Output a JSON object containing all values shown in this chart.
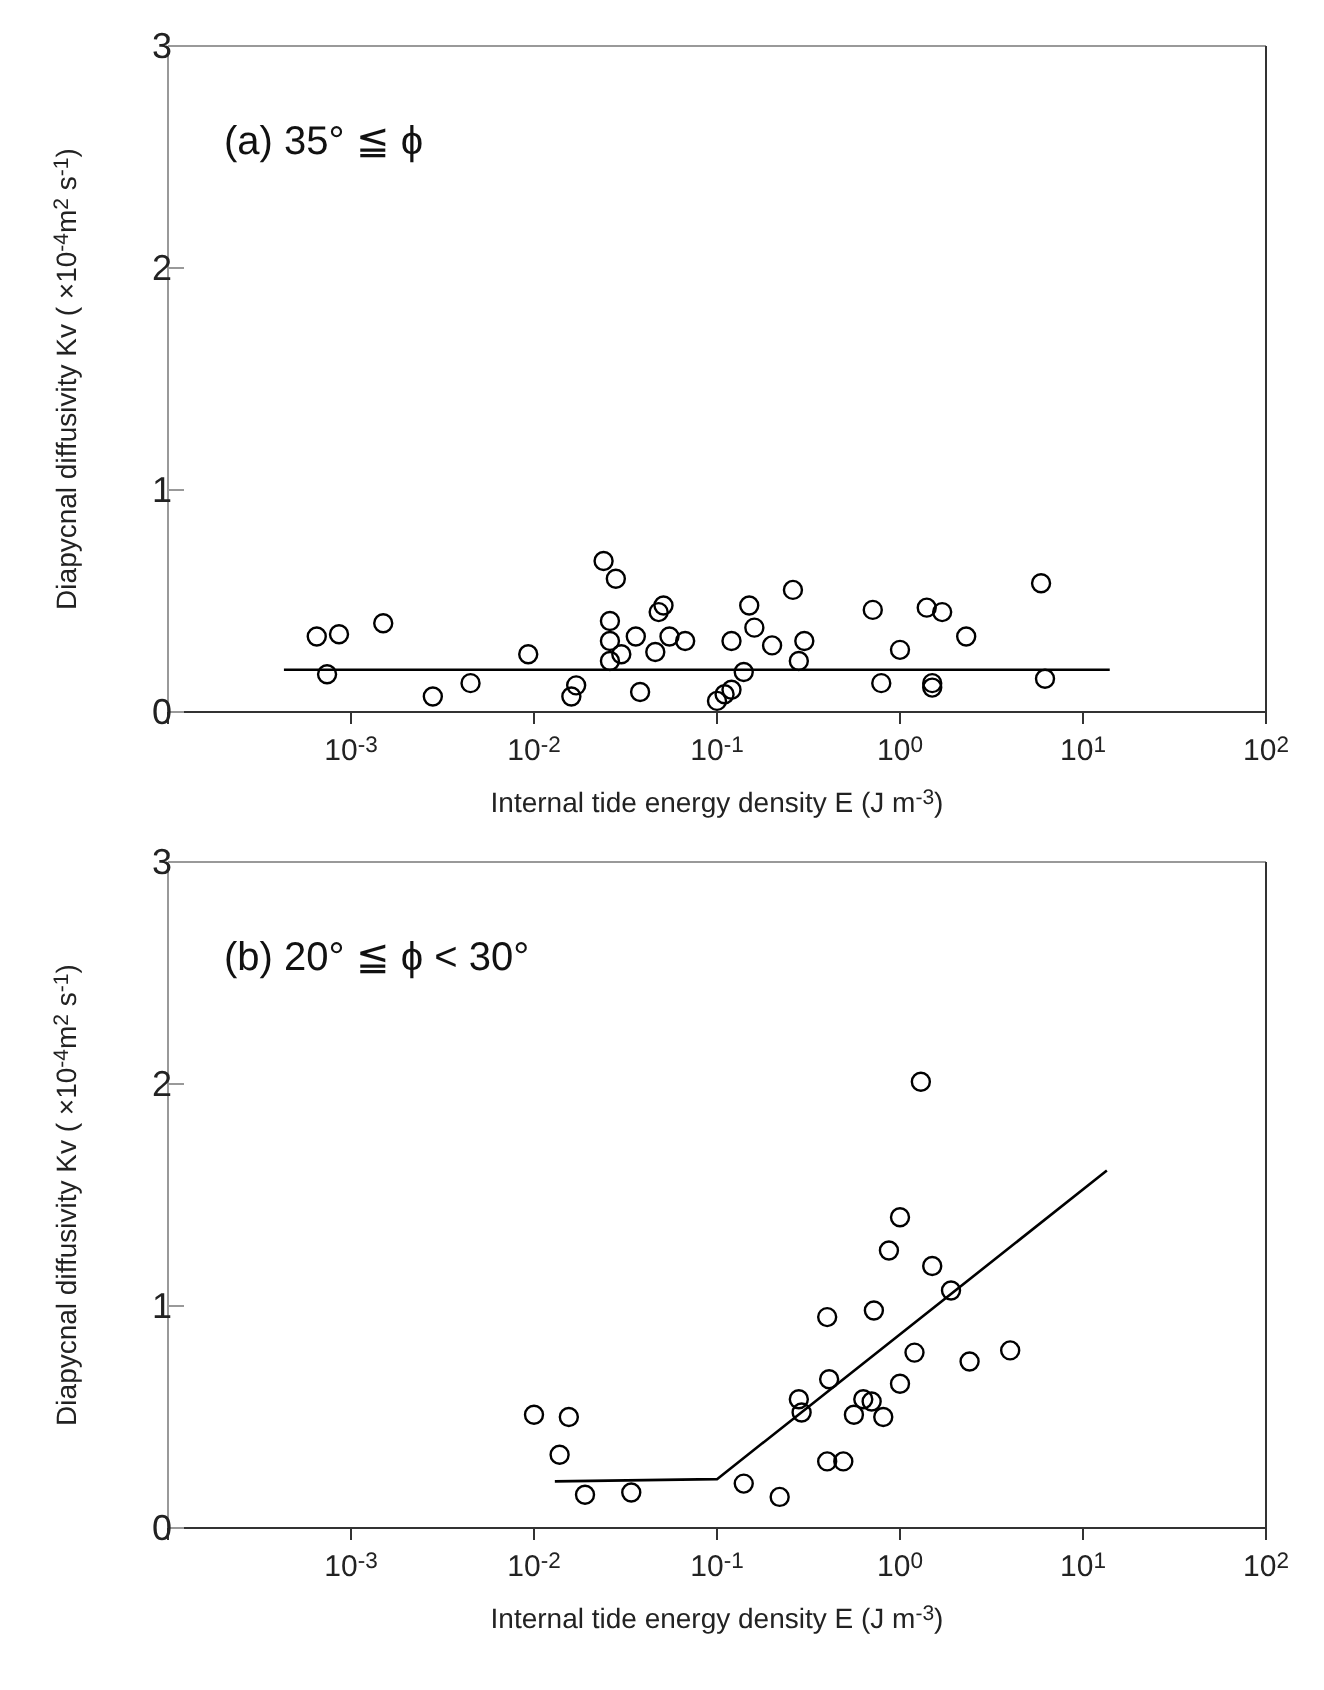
{
  "chart_data": [
    {
      "type": "scatter",
      "title": "(a) 35° ≦ ϕ",
      "xlabel": "Internal tide energy density E (J m$^{-3}$)",
      "ylabel": "Diapycnal diffusivity Kv ( ×10$^{-4}$m$^{2}$ s$^{-1}$)",
      "log": "x",
      "grid": false,
      "xlim": [
        0.0001,
        100
      ],
      "xticks": [
        {
          "value": 0.0001,
          "label": null
        },
        {
          "value": 0.001,
          "label": "10$^{-3}$"
        },
        {
          "value": 0.01,
          "label": "10$^{-2}$"
        },
        {
          "value": 0.1,
          "label": "10$^{-1}$"
        },
        {
          "value": 1,
          "label": "10$^{0}$"
        },
        {
          "value": 10,
          "label": "10$^{1}$"
        },
        {
          "value": 100,
          "label": "10$^{2}$"
        }
      ],
      "ylim": [
        0,
        3
      ],
      "yticks": [
        0,
        1,
        2,
        3
      ],
      "series": [
        {
          "marker": "circle",
          "color": "#000000",
          "x": [
            0.00065,
            0.00086,
            0.00074,
            0.0015,
            0.0028,
            0.0045,
            0.0093,
            0.016,
            0.017,
            0.024,
            0.028,
            0.026,
            0.026,
            0.026,
            0.03,
            0.036,
            0.038,
            0.046,
            0.048,
            0.051,
            0.055,
            0.067,
            0.12,
            0.15,
            0.16,
            0.2,
            0.14,
            0.11,
            0.12,
            0.1,
            0.26,
            0.3,
            0.28,
            0.71,
            1.0,
            0.79,
            1.4,
            1.7,
            1.5,
            1.5,
            2.3,
            5.9,
            6.2
          ],
          "values": [
            0.34,
            0.35,
            0.17,
            0.4,
            0.07,
            0.13,
            0.26,
            0.07,
            0.12,
            0.68,
            0.6,
            0.41,
            0.32,
            0.23,
            0.26,
            0.34,
            0.09,
            0.27,
            0.45,
            0.48,
            0.34,
            0.32,
            0.32,
            0.48,
            0.38,
            0.3,
            0.18,
            0.08,
            0.1,
            0.05,
            0.55,
            0.32,
            0.23,
            0.46,
            0.28,
            0.13,
            0.47,
            0.45,
            0.13,
            0.11,
            0.34,
            0.58,
            0.15
          ]
        },
        {
          "type": "line",
          "marker": "none",
          "color": "#000000",
          "x": [
            0.00043,
            14
          ],
          "values": [
            0.19,
            0.19
          ]
        }
      ]
    },
    {
      "type": "scatter",
      "title": "(b) 20° ≦ ϕ < 30°",
      "xlabel": "Internal tide energy density E (J m$^{-3}$)",
      "ylabel": "Diapycnal diffusivity Kv ( ×10$^{-4}$m$^{2}$ s$^{-1}$)",
      "log": "x",
      "grid": false,
      "xlim": [
        0.0001,
        100
      ],
      "xticks": [
        {
          "value": 0.0001,
          "label": null
        },
        {
          "value": 0.001,
          "label": "10$^{-3}$"
        },
        {
          "value": 0.01,
          "label": "10$^{-2}$"
        },
        {
          "value": 0.1,
          "label": "10$^{-1}$"
        },
        {
          "value": 1,
          "label": "10$^{0}$"
        },
        {
          "value": 10,
          "label": "10$^{1}$"
        },
        {
          "value": 100,
          "label": "10$^{2}$"
        }
      ],
      "ylim": [
        0,
        3
      ],
      "yticks": [
        0,
        1,
        2,
        3
      ],
      "series": [
        {
          "marker": "circle",
          "color": "#000000",
          "x": [
            0.01,
            0.0155,
            0.0138,
            0.019,
            0.034,
            0.14,
            0.22,
            1.3,
            1.0,
            0.87,
            1.5,
            1.9,
            0.4,
            0.72,
            1.2,
            2.4,
            4.0,
            1.0,
            0.41,
            0.28,
            0.29,
            0.63,
            0.7,
            0.56,
            0.81,
            0.4,
            0.49
          ],
          "values": [
            0.51,
            0.5,
            0.33,
            0.15,
            0.16,
            0.2,
            0.14,
            2.01,
            1.4,
            1.25,
            1.18,
            1.07,
            0.95,
            0.98,
            0.79,
            0.75,
            0.8,
            0.65,
            0.67,
            0.58,
            0.52,
            0.58,
            0.57,
            0.51,
            0.5,
            0.3,
            0.3
          ]
        },
        {
          "type": "line",
          "marker": "none",
          "color": "#000000",
          "x": [
            0.013,
            0.1,
            13.5
          ],
          "values": [
            0.21,
            0.22,
            1.61
          ]
        }
      ]
    }
  ]
}
